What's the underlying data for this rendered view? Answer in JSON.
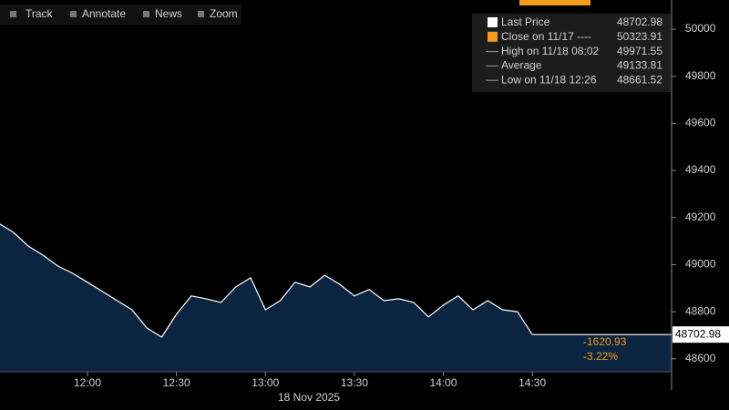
{
  "toolbar": [
    "Track",
    "Annotate",
    "News",
    "Zoom"
  ],
  "legend": [
    {
      "label": "Last Price",
      "value": "48702.98"
    },
    {
      "label": "Close on 11/17 ----",
      "value": "50323.91"
    },
    {
      "label": "High on 11/18 08:02",
      "value": "49971.55"
    },
    {
      "label": "Average",
      "value": "49133.81"
    },
    {
      "label": "Low on 11/18 12:26",
      "value": "48661.52"
    }
  ],
  "chart_data": {
    "type": "area",
    "x": [
      "11:30",
      "11:35",
      "11:40",
      "11:45",
      "11:50",
      "11:55",
      "12:00",
      "12:05",
      "12:10",
      "12:15",
      "12:20",
      "12:25",
      "12:30",
      "12:35",
      "12:40",
      "12:45",
      "12:50",
      "12:55",
      "13:00",
      "13:05",
      "13:10",
      "13:15",
      "13:20",
      "13:25",
      "13:30",
      "13:35",
      "13:40",
      "13:45",
      "13:50",
      "13:55",
      "14:00",
      "14:05",
      "14:10",
      "14:15",
      "14:20",
      "14:25",
      "14:30"
    ],
    "values": [
      49176,
      49137,
      49079,
      49040,
      48994,
      48963,
      48925,
      48886,
      48847,
      48808,
      48731,
      48692,
      48789,
      48867,
      48855,
      48839,
      48905,
      48944,
      48808,
      48847,
      48925,
      48905,
      48955,
      48917,
      48867,
      48894,
      48847,
      48855,
      48839,
      48778,
      48828,
      48867,
      48808,
      48847,
      48808,
      48800,
      48703
    ],
    "xticks": [
      "12:00",
      "12:30",
      "13:00",
      "13:30",
      "14:00",
      "14:30"
    ],
    "xlabel": "18 Nov 2025",
    "ylim": [
      48545,
      50124
    ],
    "yticks": [
      48600,
      48800,
      49000,
      49200,
      49400,
      49600,
      49800,
      50000
    ],
    "last_price": 48702.98,
    "annotations": [
      "-1620.93",
      "-3.22%"
    ],
    "color": "#ffffff",
    "fill": "#0b2440"
  }
}
